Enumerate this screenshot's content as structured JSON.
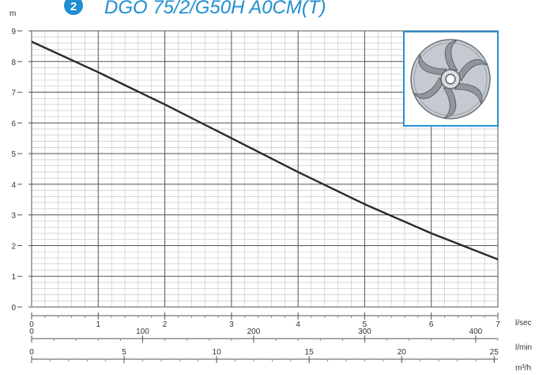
{
  "header": {
    "badge": "2",
    "title": "DGO 75/2/G50H A0CM(T)"
  },
  "colors": {
    "accent": "#1e8fd0",
    "curve": "#2a2a2a",
    "grid_major": "#555555",
    "grid_minor": "#c8c8c8"
  },
  "chart_data": {
    "type": "line",
    "title": "",
    "ylabel": "m",
    "ylim": [
      0,
      9
    ],
    "yticks": [
      "0",
      "1",
      "2",
      "3",
      "4",
      "5",
      "6",
      "7",
      "8",
      "9"
    ],
    "grid": true,
    "x_axes": [
      {
        "unit": "l/sec",
        "range": [
          0,
          7
        ],
        "ticks": [
          "0",
          "1",
          "2",
          "3",
          "4",
          "5",
          "6",
          "7"
        ],
        "tick_values": [
          0,
          1,
          2,
          3,
          4,
          5,
          6,
          7
        ]
      },
      {
        "unit": "l/min",
        "range": [
          0,
          420
        ],
        "ticks": [
          "0",
          "100",
          "200",
          "300",
          "400"
        ],
        "tick_values": [
          0,
          100,
          200,
          300,
          400
        ]
      },
      {
        "unit": "m³/h",
        "range": [
          0,
          25.2
        ],
        "ticks": [
          "0",
          "5",
          "10",
          "15",
          "20",
          "25"
        ],
        "tick_values": [
          0,
          5,
          10,
          15,
          20,
          25
        ]
      }
    ],
    "series": [
      {
        "x": [
          0,
          1,
          2,
          3,
          4,
          5,
          6,
          7
        ],
        "y": [
          8.65,
          7.65,
          6.6,
          5.5,
          4.4,
          3.35,
          2.4,
          1.55
        ]
      }
    ],
    "inset": {
      "icon": "impeller-icon",
      "border_color": "#2a8fd0"
    }
  }
}
